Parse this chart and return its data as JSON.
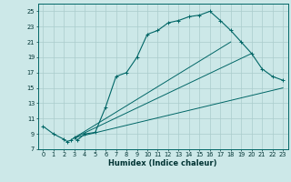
{
  "xlabel": "Humidex (Indice chaleur)",
  "bg_color": "#cce8e8",
  "grid_color": "#aacccc",
  "line_color": "#006666",
  "xlim": [
    -0.5,
    23.5
  ],
  "ylim": [
    7,
    26
  ],
  "yticks": [
    7,
    9,
    11,
    13,
    15,
    17,
    19,
    21,
    23,
    25
  ],
  "xticks": [
    0,
    1,
    2,
    3,
    4,
    5,
    6,
    7,
    8,
    9,
    10,
    11,
    12,
    13,
    14,
    15,
    16,
    17,
    18,
    19,
    20,
    21,
    22,
    23
  ],
  "curve1_x": [
    0,
    1,
    2,
    2.3,
    2.7,
    3,
    3.3,
    4,
    5,
    6,
    7,
    8,
    9,
    10,
    11,
    12,
    13,
    14,
    15,
    16,
    17,
    18,
    19,
    20,
    21,
    22,
    23
  ],
  "curve1_y": [
    10,
    9,
    8.3,
    8.0,
    8.2,
    8.5,
    8.2,
    9.0,
    9.2,
    12.5,
    16.5,
    17.0,
    19.0,
    22.0,
    22.5,
    23.5,
    23.8,
    24.3,
    24.5,
    25.0,
    23.8,
    22.5,
    21.0,
    19.5,
    17.5,
    16.5,
    16.0
  ],
  "curve2_x": [
    3,
    23
  ],
  "curve2_y": [
    8.5,
    15.0
  ],
  "curve3_x": [
    3,
    20
  ],
  "curve3_y": [
    8.5,
    19.5
  ],
  "curve4_x": [
    3,
    18
  ],
  "curve4_y": [
    8.5,
    21.0
  ],
  "ylabel_fontsize": 5.0,
  "xlabel_fontsize": 6.0,
  "tick_fontsize": 4.8
}
